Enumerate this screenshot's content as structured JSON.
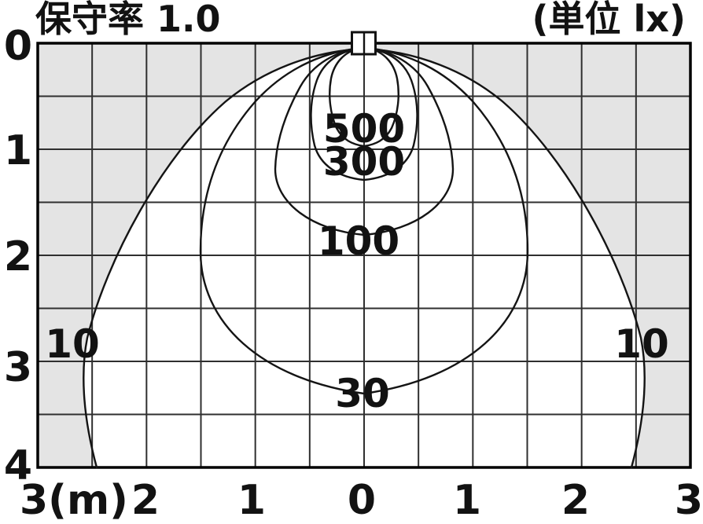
{
  "header": {
    "maintenance_label": "保守率  1.0",
    "unit_label": "(単位  lx)"
  },
  "chart_data": {
    "type": "contour",
    "subtype": "isolux_illuminance_distribution",
    "title": "保守率 1.0",
    "maintenance_factor": "1.0",
    "unit": "lx",
    "x_axis": {
      "tick_labels": [
        "3(m)",
        "2",
        "1",
        "0",
        "1",
        "2",
        "3"
      ],
      "range_m": [
        -3,
        3
      ],
      "unit": "m"
    },
    "y_axis": {
      "tick_labels": [
        "0",
        "1",
        "2",
        "3",
        "4"
      ],
      "range_m": [
        0,
        4
      ]
    },
    "grid": {
      "cols": 12,
      "rows": 8,
      "cell_size_m": 0.5
    },
    "contours": [
      {
        "label": "500",
        "level_lx": 500,
        "bottom_depth_m": 0.97,
        "max_half_width_m": 0.33
      },
      {
        "label": "300",
        "level_lx": 300,
        "bottom_depth_m": 1.29,
        "max_half_width_m": 0.49
      },
      {
        "label": "100",
        "level_lx": 100,
        "bottom_depth_m": 1.81,
        "max_half_width_m": 0.82
      },
      {
        "label": "30",
        "level_lx": 30,
        "bottom_depth_m": 3.3,
        "max_half_width_m": 1.5
      },
      {
        "label": "10",
        "level_lx": 10,
        "bottom_depth_m": 4.0,
        "max_half_width_m": 2.58,
        "clipped_by_bottom_axis": true
      }
    ],
    "shading": {
      "outside_10lx_fill": "#e4e4e4",
      "inside_10lx_fill": "#ffffff"
    },
    "fixture_symbol": "square_at_top_center"
  }
}
